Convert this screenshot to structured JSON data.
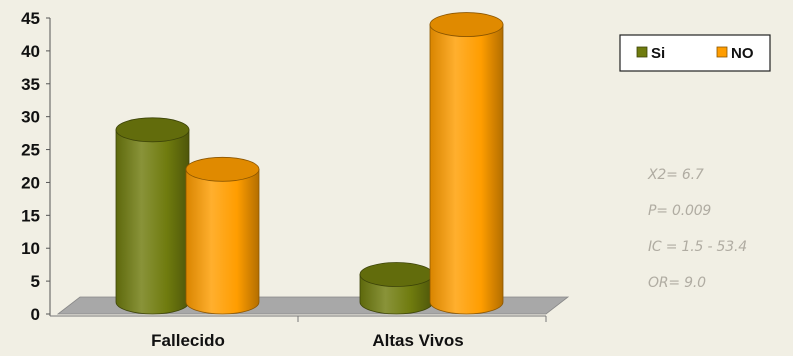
{
  "chart_data": {
    "type": "bar",
    "style": "3d-cylinder",
    "categories": [
      "Fallecido",
      "Altas Vivos"
    ],
    "series": [
      {
        "name": "Si",
        "values": [
          28,
          6
        ],
        "color": "#6f7b0e"
      },
      {
        "name": "NO",
        "values": [
          22,
          44
        ],
        "color": "#ff9d00"
      }
    ],
    "title": "",
    "xlabel": "",
    "ylabel": "",
    "ylim": [
      0,
      45
    ],
    "yticks": [
      "0",
      "5",
      "10",
      "15",
      "20",
      "25",
      "30",
      "35",
      "40",
      "45"
    ],
    "grid": false,
    "legend_position": "top-right",
    "floor_color": "#a8a8a8",
    "background": "#f1efe4"
  },
  "annotations": [
    "X2= 6.7",
    "P= 0.009",
    "IC = 1.5 - 53.4",
    "OR= 9.0"
  ]
}
